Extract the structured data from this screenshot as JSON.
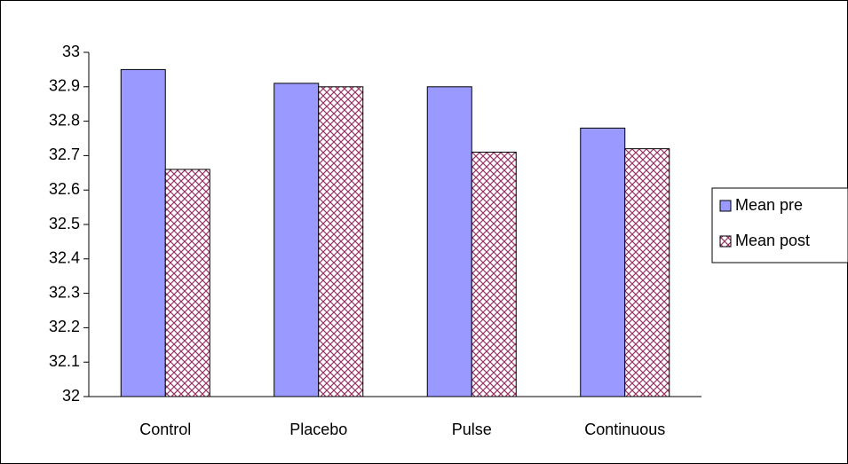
{
  "chart_data": {
    "type": "bar",
    "categories": [
      "Control",
      "Placebo",
      "Pulse",
      "Continuous"
    ],
    "series": [
      {
        "name": "Mean pre",
        "color": "#9999ff",
        "values": [
          32.95,
          32.91,
          32.9,
          32.78
        ]
      },
      {
        "name": "Mean post",
        "color": "#993366",
        "pattern": "crosshatch",
        "values": [
          32.66,
          32.9,
          32.71,
          32.72
        ]
      }
    ],
    "ylim": [
      32,
      33
    ],
    "yticks": [
      32,
      32.1,
      32.2,
      32.3,
      32.4,
      32.5,
      32.6,
      32.7,
      32.8,
      32.9,
      33
    ],
    "grid": false,
    "legend": "right"
  }
}
